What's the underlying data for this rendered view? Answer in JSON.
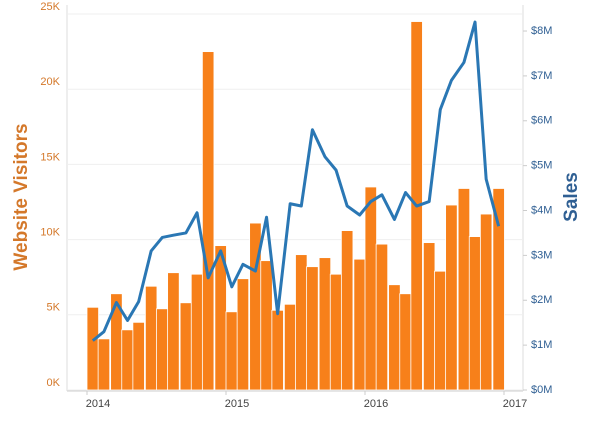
{
  "chart_data": {
    "type": "bar-line",
    "y_label": "Website Visitors",
    "y2_label": "Sales",
    "x": [
      2014.0,
      2014.08,
      2014.17,
      2014.25,
      2014.33,
      2014.42,
      2014.5,
      2014.58,
      2014.67,
      2014.75,
      2014.83,
      2014.92,
      2015.0,
      2015.08,
      2015.17,
      2015.25,
      2015.33,
      2015.42,
      2015.5,
      2015.58,
      2015.67,
      2015.75,
      2015.83,
      2015.92,
      2016.0,
      2016.08,
      2016.17,
      2016.25,
      2016.33,
      2016.42,
      2016.5,
      2016.58,
      2016.67,
      2016.75,
      2016.83,
      2016.92
    ],
    "series": [
      {
        "name": "Website Visitors",
        "kind": "bar",
        "color": "#f7801a",
        "values": [
          5500,
          3400,
          6400,
          4000,
          4500,
          6900,
          5400,
          7800,
          5800,
          7700,
          22500,
          9600,
          5200,
          7400,
          11100,
          8600,
          5300,
          5700,
          9000,
          8200,
          8800,
          7700,
          10600,
          8700,
          13500,
          9700,
          7000,
          6400,
          24500,
          9800,
          7900,
          12300,
          13400,
          10200,
          11700,
          13400
        ]
      },
      {
        "name": "Sales",
        "kind": "line",
        "axis": "y2",
        "color": "#2a77b4",
        "values": [
          1100000,
          1300000,
          1950000,
          1550000,
          1970000,
          3100000,
          3400000,
          3450000,
          3500000,
          3950000,
          2500000,
          3100000,
          2300000,
          2800000,
          2650000,
          3850000,
          1700000,
          4150000,
          4100000,
          5800000,
          5200000,
          4900000,
          4100000,
          3900000,
          4200000,
          4350000,
          3800000,
          4400000,
          4100000,
          4200000,
          6250000,
          6900000,
          7300000,
          8200000,
          4700000,
          3650000
        ]
      }
    ],
    "xlim": [
      2014,
      2017
    ],
    "xticks": [
      2014,
      2015,
      2016,
      2017
    ],
    "ylim": [
      0,
      25600
    ],
    "yticks": [
      {
        "value": 0,
        "label": "0K"
      },
      {
        "value": 5000,
        "label": "5K"
      },
      {
        "value": 10000,
        "label": "10K"
      },
      {
        "value": 15000,
        "label": "15K"
      },
      {
        "value": 20000,
        "label": "20K"
      },
      {
        "value": 25000,
        "label": "25K"
      }
    ],
    "y2lim": [
      0,
      8580000
    ],
    "y2ticks": [
      {
        "value": 0,
        "label": "$0M"
      },
      {
        "value": 1000000,
        "label": "$1M"
      },
      {
        "value": 2000000,
        "label": "$2M"
      },
      {
        "value": 3000000,
        "label": "$3M"
      },
      {
        "value": 4000000,
        "label": "$4M"
      },
      {
        "value": 5000000,
        "label": "$5M"
      },
      {
        "value": 6000000,
        "label": "$6M"
      },
      {
        "value": 7000000,
        "label": "$7M"
      },
      {
        "value": 8000000,
        "label": "$8M"
      }
    ],
    "grid": true
  }
}
